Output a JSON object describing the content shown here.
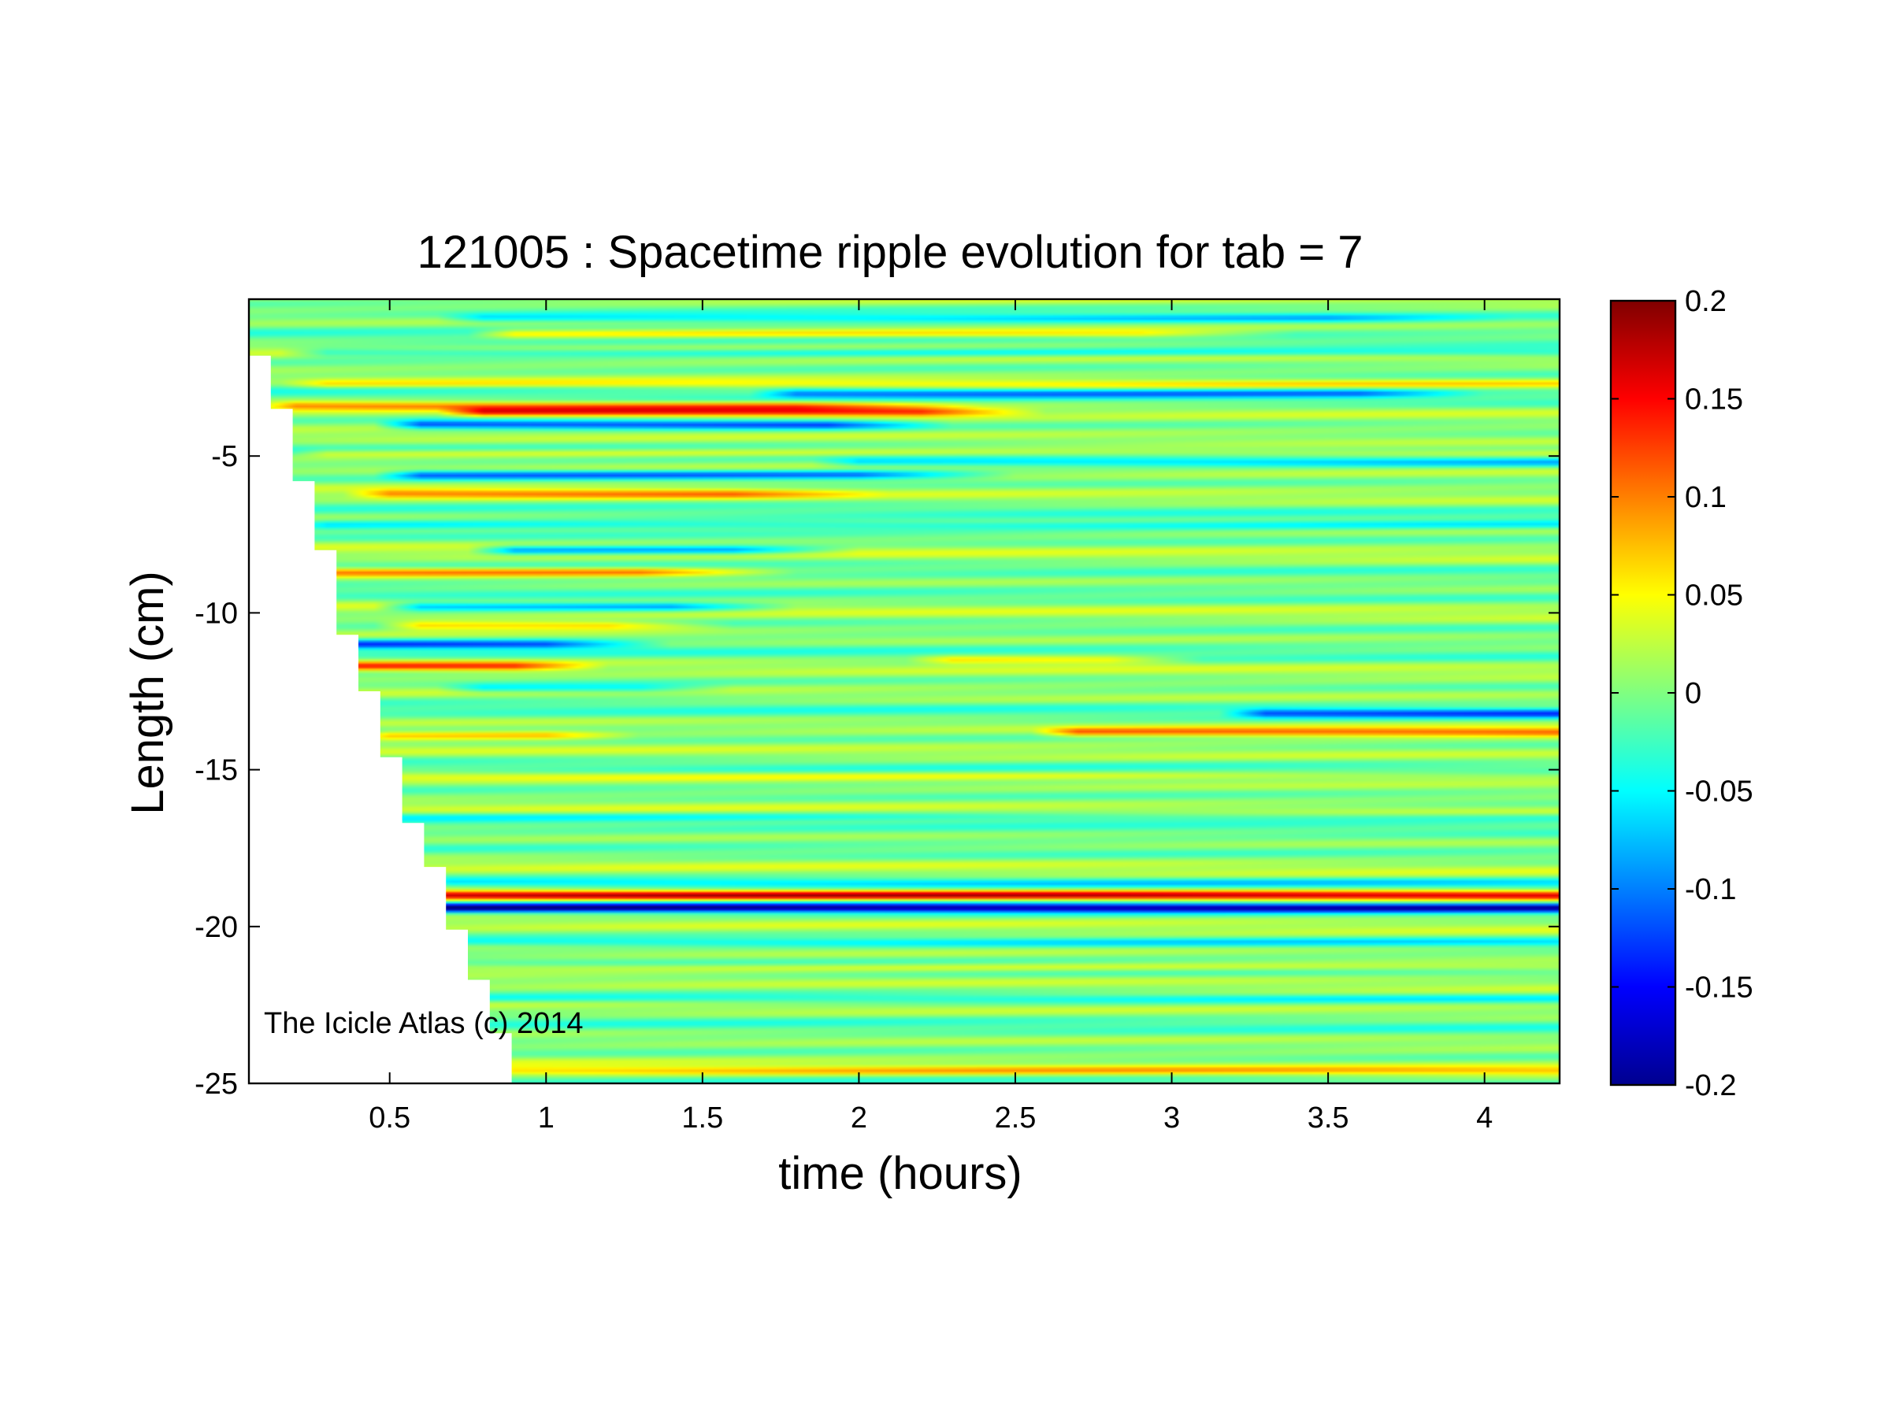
{
  "chart_data": {
    "type": "heatmap",
    "title": "121005 : Spacetime ripple evolution for tab = 7",
    "xlabel": "time (hours)",
    "ylabel": "Length (cm)",
    "xlim": [
      0.05,
      4.24
    ],
    "ylim": [
      -25,
      0
    ],
    "xticks": [
      0.5,
      1,
      1.5,
      2,
      2.5,
      3,
      3.5,
      4
    ],
    "xtick_labels": [
      "0.5",
      "1",
      "1.5",
      "2",
      "2.5",
      "3",
      "3.5",
      "4"
    ],
    "yticks": [
      -25,
      -20,
      -15,
      -10,
      -5
    ],
    "ytick_labels": [
      "-25",
      "-20",
      "-15",
      "-10",
      "-5"
    ],
    "colorbar": {
      "colormap": "jet",
      "clim": [
        -0.2,
        0.2
      ],
      "ticks": [
        0.2,
        0.15,
        0.1,
        0.05,
        0,
        -0.05,
        -0.1,
        -0.15,
        -0.2
      ],
      "tick_labels": [
        "0.2",
        "0.15",
        "0.1",
        "0.05",
        "0",
        "-0.05",
        "-0.1",
        "-0.15",
        "-0.2"
      ]
    },
    "annotation": "The Icicle Atlas (c) 2014",
    "grid": false,
    "data_boundary": {
      "description": "Region left of the staircase edge has no data (icicle tip grows downward over time)",
      "length_cm": [
        0,
        -1.8,
        -3.5,
        -5.8,
        -8,
        -10.7,
        -12.5,
        -14.6,
        -16.7,
        -18.1,
        -20.1,
        -21.7,
        -23.4,
        -25
      ],
      "start_time_h": [
        0.05,
        0.12,
        0.19,
        0.26,
        0.33,
        0.4,
        0.47,
        0.54,
        0.61,
        0.68,
        0.75,
        0.82,
        0.89,
        0.96
      ]
    },
    "bands": [
      {
        "y": -0.6,
        "amp": -0.06,
        "t_start": 0.8,
        "t_end": 3.5,
        "fade": 0.6
      },
      {
        "y": -1.1,
        "amp": 0.07,
        "t_start": 0.9,
        "t_end": 2.9,
        "fade": 0.5
      },
      {
        "y": -1.7,
        "amp": -0.06,
        "t_start": 0.3,
        "t_end": 4.24,
        "fade": 0.0
      },
      {
        "y": -2.7,
        "amp": 0.05,
        "t_start": 0.3,
        "t_end": 4.24,
        "fade": 0.0
      },
      {
        "y": -3.0,
        "amp": -0.08,
        "t_start": 1.8,
        "t_end": 3.6,
        "fade": 0.4
      },
      {
        "y": -3.4,
        "amp": 0.09,
        "t_start": 0.2,
        "t_end": 1.8,
        "fade": 0.6
      },
      {
        "y": -3.6,
        "amp": 0.12,
        "t_start": 0.8,
        "t_end": 2.2,
        "fade": 0.4
      },
      {
        "y": -4.0,
        "amp": -0.12,
        "t_start": 0.6,
        "t_end": 1.9,
        "fade": 0.4
      },
      {
        "y": -4.9,
        "amp": 0.05,
        "t_start": 0.3,
        "t_end": 4.24,
        "fade": 0.0
      },
      {
        "y": -5.2,
        "amp": -0.06,
        "t_start": 2.0,
        "t_end": 4.24,
        "fade": 0.0
      },
      {
        "y": -5.6,
        "amp": -0.1,
        "t_start": 0.6,
        "t_end": 2.0,
        "fade": 0.5
      },
      {
        "y": -6.2,
        "amp": 0.08,
        "t_start": 0.5,
        "t_end": 1.6,
        "fade": 0.5
      },
      {
        "y": -7.2,
        "amp": -0.05,
        "t_start": 0.3,
        "t_end": 4.24,
        "fade": 0.0
      },
      {
        "y": -8.0,
        "amp": -0.1,
        "t_start": 0.9,
        "t_end": 1.6,
        "fade": 0.4
      },
      {
        "y": -8.7,
        "amp": 0.1,
        "t_start": 0.3,
        "t_end": 1.3,
        "fade": 0.5
      },
      {
        "y": -9.8,
        "amp": -0.1,
        "t_start": 0.6,
        "t_end": 1.4,
        "fade": 0.4
      },
      {
        "y": -10.4,
        "amp": 0.08,
        "t_start": 0.6,
        "t_end": 1.2,
        "fade": 0.4
      },
      {
        "y": -11.0,
        "amp": -0.11,
        "t_start": 0.4,
        "t_end": 1.0,
        "fade": 0.4
      },
      {
        "y": -11.7,
        "amp": 0.11,
        "t_start": 0.4,
        "t_end": 0.9,
        "fade": 0.3
      },
      {
        "y": -11.5,
        "amp": 0.06,
        "t_start": 2.3,
        "t_end": 2.8,
        "fade": 0.3
      },
      {
        "y": -12.4,
        "amp": -0.06,
        "t_start": 0.8,
        "t_end": 1.3,
        "fade": 0.3
      },
      {
        "y": -13.2,
        "amp": -0.1,
        "t_start": 3.3,
        "t_end": 4.24,
        "fade": 0.0
      },
      {
        "y": -13.8,
        "amp": 0.1,
        "t_start": 2.7,
        "t_end": 4.24,
        "fade": 0.0
      },
      {
        "y": -13.9,
        "amp": 0.07,
        "t_start": 0.5,
        "t_end": 1.0,
        "fade": 0.3
      },
      {
        "y": -15.2,
        "amp": 0.04,
        "t_start": 0.4,
        "t_end": 4.24,
        "fade": 0.0
      },
      {
        "y": -16.5,
        "amp": -0.04,
        "t_start": 0.5,
        "t_end": 4.24,
        "fade": 0.0
      },
      {
        "y": -18.6,
        "amp": -0.05,
        "t_start": 0.7,
        "t_end": 4.24,
        "fade": 0.0
      },
      {
        "y": -19.0,
        "amp": 0.17,
        "t_start": 0.68,
        "t_end": 4.24,
        "fade": 0.0
      },
      {
        "y": -19.4,
        "amp": -0.17,
        "t_start": 0.68,
        "t_end": 4.24,
        "fade": 0.0
      },
      {
        "y": -20.5,
        "amp": -0.05,
        "t_start": 0.7,
        "t_end": 4.24,
        "fade": 0.0
      },
      {
        "y": -21.3,
        "amp": 0.05,
        "t_start": 0.7,
        "t_end": 4.24,
        "fade": 0.0
      },
      {
        "y": -22.3,
        "amp": -0.04,
        "t_start": 0.8,
        "t_end": 4.24,
        "fade": 0.0
      },
      {
        "y": -24.6,
        "amp": 0.06,
        "t_start": 0.9,
        "t_end": 4.24,
        "fade": 0.0
      }
    ]
  }
}
